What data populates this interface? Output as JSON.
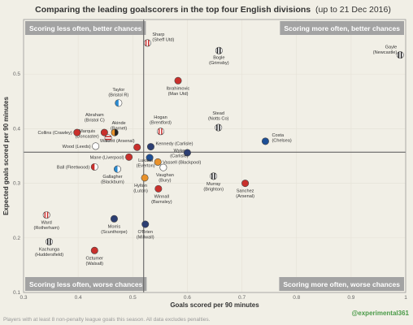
{
  "chart_data": {
    "type": "scatter",
    "title": "Comparing the leading goalscorers in the top four English divisions",
    "subtitle": "(up to 21 Dec 2016)",
    "xlabel": "Goals scored per 90 minutes",
    "ylabel": "Expected goals scored per 90 minutes",
    "xlim": [
      0.3,
      1.0
    ],
    "ylim": [
      0.1,
      0.6
    ],
    "xticks": [
      "0.3",
      "0.4",
      "0.5",
      "0.6",
      "0.7",
      "0.8",
      "0.9",
      "1"
    ],
    "yticks": [
      "0.1",
      "0.2",
      "0.3",
      "0.4",
      "0.5"
    ],
    "grid": true,
    "reference_lines": {
      "x": 0.52,
      "y": 0.357
    },
    "quadrants": {
      "top_left": "Scoring less often, better chances",
      "top_right": "Scoring more often, better chances",
      "bottom_left": "Scoring less often, worse chances",
      "bottom_right": "Scoring more often, worse chances"
    },
    "footnote": "Players with at least 8 non-penalty league goals this season. All data excludes penalties.",
    "credit": "@experimental361",
    "points": [
      {
        "name": "Gayle",
        "team": "(Newcastle)",
        "x": 0.99,
        "y": 0.535,
        "kit": "stripe-bw"
      },
      {
        "name": "Sharp",
        "team": "(Sheff Utd)",
        "x": 0.527,
        "y": 0.557,
        "kit": "stripe-rw"
      },
      {
        "name": "Bogle",
        "team": "(Grimsby)",
        "x": 0.658,
        "y": 0.543,
        "kit": "stripe-bw"
      },
      {
        "name": "Ibrahimovic",
        "team": "(Man Utd)",
        "x": 0.583,
        "y": 0.488,
        "kit": "solid-red"
      },
      {
        "name": "Taylor",
        "team": "(Bristol R)",
        "x": 0.474,
        "y": 0.447,
        "kit": "half-blue-white"
      },
      {
        "name": "Abraham",
        "team": "(Bristol C)",
        "x": 0.448,
        "y": 0.393,
        "kit": "solid-red"
      },
      {
        "name": "Akinde",
        "team": "(Barnet)",
        "x": 0.467,
        "y": 0.393,
        "kit": "half-amber-black"
      },
      {
        "name": "Hogan",
        "team": "(Brentford)",
        "x": 0.551,
        "y": 0.395,
        "kit": "stripe-rw"
      },
      {
        "name": "Stead",
        "team": "(Notts Co)",
        "x": 0.657,
        "y": 0.402,
        "kit": "stripe-bw"
      },
      {
        "name": "Marquis",
        "team": "(Doncaster)",
        "x": 0.455,
        "y": 0.383,
        "kit": "hoops-rw"
      },
      {
        "name": "Collins",
        "team": "(Crawley)",
        "x": 0.398,
        "y": 0.393,
        "kit": "solid-red"
      },
      {
        "name": "Walcott",
        "team": "(Arsenal)",
        "x": 0.508,
        "y": 0.366,
        "kit": "solid-red"
      },
      {
        "name": "Wood",
        "team": "(Leeds)",
        "x": 0.432,
        "y": 0.368,
        "kit": "solid-white"
      },
      {
        "name": "Costa",
        "team": "(Chelsea)",
        "x": 0.743,
        "y": 0.377,
        "kit": "solid-blue"
      },
      {
        "name": "Kennedy",
        "team": "(Carlisle)",
        "x": 0.533,
        "y": 0.367,
        "kit": "solid-navy"
      },
      {
        "name": "Wyke",
        "team": "(Carlisle)",
        "x": 0.6,
        "y": 0.356,
        "kit": "solid-navy"
      },
      {
        "name": "Mane",
        "team": "(Liverpool)",
        "x": 0.493,
        "y": 0.348,
        "kit": "solid-red"
      },
      {
        "name": "Lukaku",
        "team": "(Everton)",
        "x": 0.531,
        "y": 0.347,
        "kit": "solid-blue"
      },
      {
        "name": "Vassell",
        "team": "(Blackpool)",
        "x": 0.546,
        "y": 0.339,
        "kit": "solid-orange"
      },
      {
        "name": "Ball",
        "team": "(Fleetwood)",
        "x": 0.43,
        "y": 0.33,
        "kit": "half-red-white"
      },
      {
        "name": "Gallagher",
        "team": "(Blackburn)",
        "x": 0.472,
        "y": 0.326,
        "kit": "half-blue-white"
      },
      {
        "name": "Vaughan",
        "team": "(Bury)",
        "x": 0.556,
        "y": 0.329,
        "kit": "solid-white"
      },
      {
        "name": "Murray",
        "team": "(Brighton)",
        "x": 0.648,
        "y": 0.313,
        "kit": "stripe-bw"
      },
      {
        "name": "Sanchez",
        "team": "(Arsenal)",
        "x": 0.706,
        "y": 0.3,
        "kit": "solid-red"
      },
      {
        "name": "Hylton",
        "team": "(Luton)",
        "x": 0.522,
        "y": 0.31,
        "kit": "solid-orange"
      },
      {
        "name": "Winnall",
        "team": "(Barnsley)",
        "x": 0.547,
        "y": 0.29,
        "kit": "solid-red"
      },
      {
        "name": "Ward",
        "team": "(Rotherham)",
        "x": 0.342,
        "y": 0.242,
        "kit": "stripe-rw"
      },
      {
        "name": "Morris",
        "team": "(Scunthorpe)",
        "x": 0.466,
        "y": 0.235,
        "kit": "solid-navy"
      },
      {
        "name": "O'Brien",
        "team": "(Millwall)",
        "x": 0.523,
        "y": 0.225,
        "kit": "solid-navy"
      },
      {
        "name": "Kachunga",
        "team": "(Huddersfield)",
        "x": 0.347,
        "y": 0.193,
        "kit": "stripe-bw"
      },
      {
        "name": "Oztumer",
        "team": "(Walsall)",
        "x": 0.43,
        "y": 0.177,
        "kit": "solid-red"
      }
    ]
  }
}
